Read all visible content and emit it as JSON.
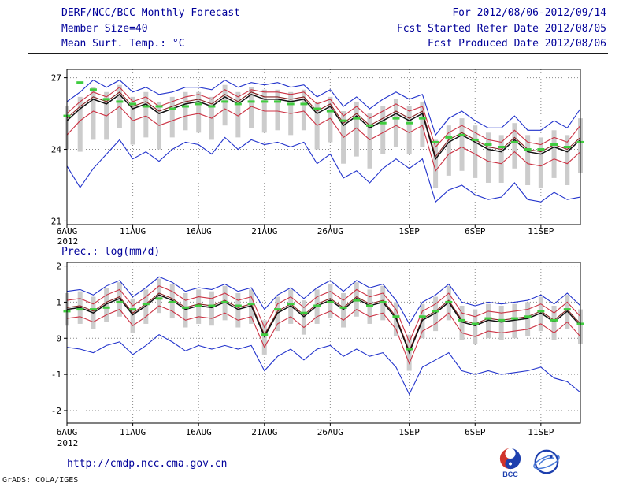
{
  "header": {
    "title": "DERF/NCC/BCC Monthly Forecast",
    "for_range": "For 2012/08/06-2012/09/14",
    "member_size": "Member Size=40",
    "fcst_started": "Fcst Started Refer Date 2012/08/05",
    "temp_label": "Mean Surf. Temp.: °C",
    "fcst_produced": "Fcst Produced Date 2012/08/06",
    "prec_label": "Prec.: log(mm/d)"
  },
  "footer": {
    "url": "http://cmdp.ncc.cma.gov.cn",
    "credit": "GrADS: COLA/IGES",
    "bcc_label": "BCC"
  },
  "colors": {
    "header_text": "#00009a",
    "line_blue": "#2233cc",
    "line_red": "#cc3344",
    "line_black": "#111111",
    "line_maroon": "#882222",
    "clim_green": "#3fcc3f",
    "spread_gray": "#cccccc"
  },
  "chart_data": [
    {
      "type": "line",
      "title": "Mean Surf. Temp.: °C",
      "x_range": [
        "2012-08-06",
        "2012-09-14"
      ],
      "n_points": 40,
      "x_tick_labels": [
        "6AUG",
        "11AUG",
        "16AUG",
        "21AUG",
        "26AUG",
        "1SEP",
        "6SEP",
        "11SEP"
      ],
      "x_tick_positions": [
        0,
        5,
        10,
        15,
        20,
        26,
        31,
        36
      ],
      "x_sub_label": "2012",
      "ylim": [
        20.85,
        27.35
      ],
      "yticks": [
        21,
        24,
        27
      ],
      "grid": true,
      "legend": false,
      "series": [
        {
          "name": "ensemble_max",
          "color": "#2233cc",
          "values": [
            26.0,
            26.4,
            26.9,
            26.6,
            26.9,
            26.4,
            26.6,
            26.3,
            26.4,
            26.6,
            26.6,
            26.5,
            26.9,
            26.6,
            26.8,
            26.7,
            26.8,
            26.6,
            26.7,
            26.2,
            26.5,
            25.8,
            26.2,
            25.7,
            26.1,
            26.4,
            26.1,
            26.3,
            24.6,
            25.3,
            25.6,
            25.2,
            24.9,
            24.9,
            25.4,
            24.8,
            24.8,
            25.2,
            24.9,
            25.7
          ]
        },
        {
          "name": "upper_quartile",
          "color": "#cc3344",
          "values": [
            25.5,
            26.0,
            26.4,
            26.2,
            26.6,
            26.0,
            26.2,
            25.8,
            26.0,
            26.2,
            26.3,
            26.1,
            26.5,
            26.2,
            26.5,
            26.4,
            26.4,
            26.3,
            26.4,
            25.9,
            26.1,
            25.4,
            25.8,
            25.3,
            25.6,
            25.9,
            25.6,
            25.8,
            24.1,
            24.7,
            25.0,
            24.7,
            24.4,
            24.3,
            24.8,
            24.3,
            24.2,
            24.5,
            24.3,
            25.0
          ]
        },
        {
          "name": "lower_quartile",
          "color": "#cc3344",
          "values": [
            24.6,
            25.2,
            25.6,
            25.4,
            25.8,
            25.2,
            25.4,
            25.0,
            25.2,
            25.4,
            25.5,
            25.3,
            25.7,
            25.4,
            25.8,
            25.6,
            25.6,
            25.5,
            25.6,
            25.0,
            25.3,
            24.5,
            24.9,
            24.4,
            24.7,
            25.0,
            24.7,
            25.0,
            23.1,
            23.8,
            24.1,
            23.8,
            23.5,
            23.4,
            23.9,
            23.4,
            23.3,
            23.6,
            23.4,
            23.9
          ]
        },
        {
          "name": "ensemble_min",
          "color": "#2233cc",
          "values": [
            23.3,
            22.4,
            23.2,
            23.8,
            24.4,
            23.6,
            23.9,
            23.5,
            24.0,
            24.3,
            24.2,
            23.8,
            24.5,
            24.0,
            24.4,
            24.2,
            24.3,
            24.1,
            24.3,
            23.4,
            23.8,
            22.8,
            23.1,
            22.6,
            23.2,
            23.6,
            23.2,
            23.6,
            21.8,
            22.3,
            22.5,
            22.1,
            21.9,
            22.0,
            22.6,
            21.9,
            21.8,
            22.2,
            21.9,
            22.0
          ]
        },
        {
          "name": "control_run",
          "color": "#882222",
          "values": [
            25.3,
            25.8,
            26.2,
            26.0,
            26.4,
            25.8,
            26.0,
            25.6,
            25.8,
            26.0,
            26.1,
            25.9,
            26.3,
            26.0,
            26.4,
            26.2,
            26.2,
            26.1,
            26.2,
            25.6,
            25.9,
            25.1,
            25.5,
            25.0,
            25.3,
            25.6,
            25.3,
            25.6,
            23.7,
            24.4,
            24.7,
            24.4,
            24.1,
            24.0,
            24.5,
            24.0,
            23.9,
            24.2,
            24.0,
            24.5
          ]
        },
        {
          "name": "ens_mean",
          "color": "#111111",
          "values": [
            25.2,
            25.7,
            26.1,
            25.9,
            26.3,
            25.7,
            25.9,
            25.5,
            25.7,
            25.9,
            26.0,
            25.8,
            26.2,
            25.9,
            26.3,
            26.1,
            26.1,
            26.0,
            26.1,
            25.5,
            25.8,
            25.0,
            25.4,
            24.9,
            25.2,
            25.5,
            25.2,
            25.5,
            23.6,
            24.3,
            24.6,
            24.3,
            24.0,
            23.9,
            24.4,
            23.9,
            23.8,
            24.1,
            23.9,
            24.4
          ]
        }
      ],
      "climatology_dashes": {
        "color": "#3fcc3f",
        "values": [
          25.4,
          26.8,
          26.5,
          26.1,
          26.0,
          25.9,
          25.8,
          25.8,
          25.7,
          25.8,
          25.9,
          25.8,
          26.0,
          25.9,
          26.0,
          26.0,
          26.0,
          25.9,
          25.9,
          25.7,
          25.6,
          25.2,
          25.3,
          25.0,
          25.1,
          25.3,
          25.1,
          25.3,
          24.3,
          24.5,
          24.6,
          24.4,
          24.2,
          24.1,
          24.3,
          24.0,
          24.0,
          24.2,
          24.1,
          24.3
        ]
      },
      "spread_bars": {
        "color": "#cccccc",
        "hi": [
          25.8,
          26.2,
          26.6,
          26.4,
          26.7,
          26.2,
          26.4,
          26.0,
          26.2,
          26.4,
          26.4,
          26.2,
          26.7,
          26.4,
          26.6,
          26.5,
          26.5,
          26.4,
          26.5,
          26.0,
          26.2,
          25.6,
          26.0,
          25.5,
          25.8,
          26.1,
          25.8,
          26.0,
          24.4,
          25.0,
          25.3,
          25.0,
          24.7,
          24.6,
          25.1,
          24.6,
          24.5,
          24.8,
          24.6,
          25.3
        ],
        "lo": [
          24.0,
          23.9,
          24.4,
          24.4,
          24.9,
          24.2,
          24.5,
          24.0,
          24.5,
          24.8,
          24.7,
          24.4,
          25.0,
          24.5,
          24.9,
          24.7,
          24.8,
          24.6,
          24.8,
          24.0,
          24.3,
          23.4,
          23.7,
          23.2,
          23.8,
          24.1,
          23.8,
          24.1,
          22.4,
          22.9,
          23.1,
          22.8,
          22.6,
          22.6,
          23.2,
          22.5,
          22.4,
          22.8,
          22.5,
          23.0
        ]
      }
    },
    {
      "type": "line",
      "title": "Prec.: log(mm/d)",
      "x_range": [
        "2012-08-06",
        "2012-09-14"
      ],
      "n_points": 40,
      "x_tick_labels": [
        "6AUG",
        "11AUG",
        "16AUG",
        "21AUG",
        "26AUG",
        "1SEP",
        "6SEP",
        "11SEP"
      ],
      "x_tick_positions": [
        0,
        5,
        10,
        15,
        20,
        26,
        31,
        36
      ],
      "x_sub_label": "2012",
      "ylim": [
        -2.35,
        2.1
      ],
      "yticks": [
        -2,
        -1,
        0,
        1,
        2
      ],
      "grid": true,
      "legend": false,
      "series": [
        {
          "name": "ensemble_max",
          "color": "#2233cc",
          "values": [
            1.3,
            1.35,
            1.2,
            1.45,
            1.6,
            1.15,
            1.4,
            1.7,
            1.55,
            1.3,
            1.4,
            1.35,
            1.5,
            1.3,
            1.4,
            0.8,
            1.2,
            1.4,
            1.1,
            1.4,
            1.6,
            1.3,
            1.6,
            1.4,
            1.5,
            1.05,
            0.4,
            1.0,
            1.2,
            1.5,
            1.0,
            0.9,
            1.0,
            0.95,
            1.0,
            1.05,
            1.2,
            0.95,
            1.25,
            0.9
          ]
        },
        {
          "name": "upper_quartile",
          "color": "#cc3344",
          "values": [
            1.05,
            1.1,
            0.95,
            1.2,
            1.35,
            0.9,
            1.15,
            1.45,
            1.3,
            1.05,
            1.15,
            1.1,
            1.25,
            1.05,
            1.15,
            0.3,
            0.95,
            1.15,
            0.85,
            1.15,
            1.3,
            1.05,
            1.35,
            1.15,
            1.25,
            0.8,
            -0.1,
            0.75,
            0.95,
            1.25,
            0.7,
            0.6,
            0.75,
            0.7,
            0.75,
            0.8,
            0.95,
            0.7,
            1.0,
            0.6
          ]
        },
        {
          "name": "lower_quartile",
          "color": "#cc3344",
          "values": [
            0.55,
            0.6,
            0.45,
            0.65,
            0.8,
            0.35,
            0.6,
            0.9,
            0.75,
            0.5,
            0.6,
            0.55,
            0.7,
            0.5,
            0.6,
            -0.25,
            0.4,
            0.6,
            0.3,
            0.6,
            0.75,
            0.5,
            0.8,
            0.6,
            0.7,
            0.25,
            -0.7,
            0.2,
            0.4,
            0.7,
            0.15,
            0.05,
            0.2,
            0.15,
            0.2,
            0.25,
            0.4,
            0.15,
            0.45,
            0.05
          ]
        },
        {
          "name": "ensemble_min",
          "color": "#2233cc",
          "values": [
            -0.25,
            -0.3,
            -0.4,
            -0.2,
            -0.1,
            -0.45,
            -0.2,
            0.1,
            -0.1,
            -0.35,
            -0.2,
            -0.3,
            -0.2,
            -0.3,
            -0.2,
            -0.9,
            -0.5,
            -0.3,
            -0.6,
            -0.3,
            -0.2,
            -0.5,
            -0.3,
            -0.5,
            -0.4,
            -0.8,
            -1.55,
            -0.8,
            -0.6,
            -0.4,
            -0.9,
            -1.0,
            -0.9,
            -1.0,
            -0.95,
            -0.9,
            -0.8,
            -1.1,
            -1.2,
            -1.5
          ]
        },
        {
          "name": "control_run",
          "color": "#882222",
          "values": [
            0.85,
            0.9,
            0.75,
            1.0,
            1.15,
            0.7,
            0.95,
            1.25,
            1.1,
            0.85,
            0.95,
            0.9,
            1.05,
            0.85,
            0.95,
            0.1,
            0.75,
            0.95,
            0.65,
            0.95,
            1.1,
            0.85,
            1.15,
            0.95,
            1.05,
            0.6,
            -0.35,
            0.55,
            0.75,
            1.05,
            0.5,
            0.4,
            0.55,
            0.5,
            0.55,
            0.6,
            0.75,
            0.5,
            0.8,
            0.4
          ]
        },
        {
          "name": "ens_mean",
          "color": "#111111",
          "values": [
            0.8,
            0.85,
            0.7,
            0.95,
            1.1,
            0.65,
            0.9,
            1.2,
            1.05,
            0.8,
            0.9,
            0.85,
            1.0,
            0.8,
            0.9,
            0.05,
            0.7,
            0.9,
            0.6,
            0.9,
            1.05,
            0.8,
            1.1,
            0.9,
            1.0,
            0.55,
            -0.4,
            0.5,
            0.7,
            1.0,
            0.45,
            0.35,
            0.5,
            0.45,
            0.5,
            0.55,
            0.7,
            0.45,
            0.75,
            0.35
          ]
        }
      ],
      "climatology_dashes": {
        "color": "#3fcc3f",
        "values": [
          0.75,
          0.8,
          0.8,
          0.85,
          1.0,
          0.8,
          0.95,
          1.1,
          1.0,
          0.85,
          0.9,
          0.9,
          1.0,
          0.9,
          0.95,
          0.1,
          0.8,
          0.95,
          0.7,
          0.9,
          1.0,
          0.85,
          1.05,
          0.9,
          1.0,
          0.6,
          -0.3,
          0.6,
          0.75,
          1.0,
          0.5,
          0.4,
          0.55,
          0.5,
          0.55,
          0.6,
          0.75,
          0.5,
          0.8,
          0.4
        ]
      },
      "spread_bars": {
        "color": "#cccccc",
        "hi": [
          1.25,
          1.3,
          1.15,
          1.4,
          1.55,
          1.1,
          1.35,
          1.65,
          1.5,
          1.25,
          1.35,
          1.3,
          1.45,
          1.25,
          1.35,
          0.5,
          1.15,
          1.35,
          1.05,
          1.35,
          1.5,
          1.25,
          1.55,
          1.35,
          1.45,
          1.0,
          0.1,
          0.95,
          1.15,
          1.45,
          0.9,
          0.8,
          0.95,
          0.9,
          0.95,
          1.0,
          1.15,
          0.9,
          1.2,
          0.8
        ],
        "lo": [
          0.35,
          0.4,
          0.25,
          0.45,
          0.6,
          0.15,
          0.4,
          0.7,
          0.55,
          0.3,
          0.4,
          0.35,
          0.5,
          0.3,
          0.4,
          -0.45,
          0.2,
          0.4,
          0.1,
          0.4,
          0.55,
          0.3,
          0.6,
          0.4,
          0.5,
          0.05,
          -0.9,
          0.0,
          0.2,
          0.5,
          -0.05,
          -0.15,
          0.0,
          -0.05,
          0.0,
          0.05,
          0.2,
          -0.05,
          0.25,
          -0.15
        ]
      }
    }
  ]
}
